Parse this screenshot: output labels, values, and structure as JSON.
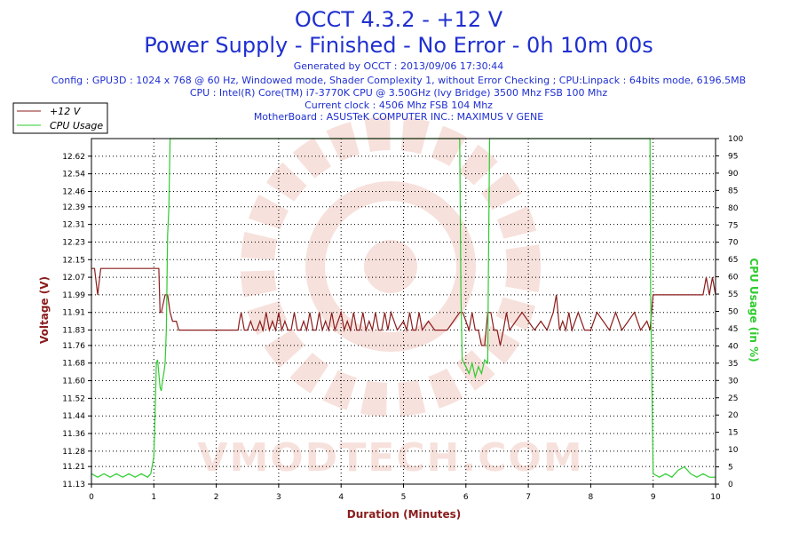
{
  "title": "OCCT 4.3.2 - +12 V",
  "subtitle": "Power Supply - Finished - No Error - 0h 10m 00s",
  "info_lines": [
    "Generated by OCCT : 2013/09/06 17:30:44",
    "Config : GPU3D : 1024 x 768 @ 60 Hz, Windowed mode, Shader Complexity 1, without Error Checking ; CPU:Linpack : 64bits mode, 6196.5MB",
    "CPU : Intel(R) Core(TM) i7-3770K CPU @ 3.50GHz (Ivy Bridge) 3500 Mhz FSB 100 Mhz",
    "Current clock : 4506 Mhz FSB 104 Mhz",
    "MotherBoard : ASUSTeK COMPUTER INC.: MAXIMUS V GENE"
  ],
  "watermark": "VMODTECH.COM",
  "colors": {
    "voltage": "#8b1c1c",
    "cpu": "#2ecc2e",
    "title": "#1f2fd0",
    "watermark": "#f2c9c0"
  },
  "chart_data": {
    "type": "line",
    "title": "OCCT 4.3.2 - +12 V",
    "subtitle": "Power Supply - Finished - No Error - 0h 10m 00s",
    "xlabel": "Duration (Minutes)",
    "ylabel": "Voltage (V)",
    "y2label": "CPU Usage (in %)",
    "xlim": [
      0,
      10
    ],
    "ylim": [
      11.13,
      12.7
    ],
    "y2lim": [
      0,
      100
    ],
    "x_ticks": [
      "0",
      "1",
      "2",
      "3",
      "4",
      "5",
      "6",
      "7",
      "8",
      "9",
      "10"
    ],
    "y_ticks": [
      "11.13",
      "11.21",
      "11.28",
      "11.36",
      "11.44",
      "11.52",
      "11.60",
      "11.68",
      "11.76",
      "11.83",
      "11.91",
      "11.99",
      "12.07",
      "12.15",
      "12.23",
      "12.31",
      "12.39",
      "12.46",
      "12.54",
      "12.62"
    ],
    "y2_ticks": [
      "0",
      "5",
      "10",
      "15",
      "20",
      "25",
      "30",
      "35",
      "40",
      "45",
      "50",
      "55",
      "60",
      "65",
      "70",
      "75",
      "80",
      "85",
      "90",
      "95",
      "100"
    ],
    "grid": true,
    "legend_position": "top-left",
    "series": [
      {
        "name": "+12 V",
        "axis": "left",
        "x": [
          0,
          0.05,
          0.1,
          0.15,
          0.2,
          0.22,
          0.24,
          0.3,
          1.0,
          1.08,
          1.1,
          1.12,
          1.18,
          1.22,
          1.26,
          1.3,
          1.36,
          1.4,
          1.45,
          1.5,
          2.0,
          2.35,
          2.37,
          2.4,
          2.45,
          2.5,
          2.55,
          2.6,
          2.65,
          2.7,
          2.75,
          2.8,
          2.85,
          2.9,
          2.95,
          3.0,
          3.05,
          3.1,
          3.15,
          3.2,
          3.25,
          3.3,
          3.35,
          3.4,
          3.45,
          3.5,
          3.55,
          3.6,
          3.65,
          3.7,
          3.75,
          3.8,
          3.85,
          3.9,
          4.0,
          4.05,
          4.1,
          4.15,
          4.2,
          4.25,
          4.3,
          4.35,
          4.4,
          4.45,
          4.5,
          4.55,
          4.6,
          4.65,
          4.7,
          4.75,
          4.8,
          4.9,
          5.0,
          5.05,
          5.1,
          5.15,
          5.2,
          5.25,
          5.3,
          5.4,
          5.5,
          5.6,
          5.7,
          5.8,
          5.9,
          5.95,
          6.0,
          6.05,
          6.1,
          6.15,
          6.2,
          6.25,
          6.3,
          6.35,
          6.4,
          6.45,
          6.5,
          6.55,
          6.6,
          6.65,
          6.7,
          6.8,
          6.9,
          7.0,
          7.1,
          7.2,
          7.3,
          7.4,
          7.45,
          7.5,
          7.55,
          7.6,
          7.65,
          7.7,
          7.8,
          7.9,
          8.0,
          8.1,
          8.2,
          8.3,
          8.4,
          8.5,
          8.6,
          8.7,
          8.8,
          8.9,
          8.95,
          9.0,
          9.5,
          9.8,
          9.85,
          9.9,
          9.95,
          10.0
        ],
        "values": [
          12.11,
          12.11,
          11.99,
          12.11,
          12.11,
          12.11,
          12.11,
          12.11,
          12.11,
          12.11,
          11.91,
          11.91,
          11.99,
          11.99,
          11.91,
          11.87,
          11.87,
          11.83,
          11.83,
          11.83,
          11.83,
          11.83,
          11.87,
          11.91,
          11.83,
          11.83,
          11.87,
          11.83,
          11.83,
          11.87,
          11.83,
          11.91,
          11.83,
          11.87,
          11.83,
          11.91,
          11.83,
          11.87,
          11.83,
          11.83,
          11.91,
          11.83,
          11.83,
          11.87,
          11.83,
          11.91,
          11.83,
          11.83,
          11.91,
          11.83,
          11.87,
          11.83,
          11.91,
          11.83,
          11.91,
          11.83,
          11.87,
          11.83,
          11.91,
          11.83,
          11.83,
          11.91,
          11.83,
          11.87,
          11.83,
          11.91,
          11.83,
          11.83,
          11.91,
          11.83,
          11.91,
          11.83,
          11.87,
          11.83,
          11.91,
          11.83,
          11.83,
          11.91,
          11.83,
          11.87,
          11.83,
          11.83,
          11.83,
          11.87,
          11.91,
          11.91,
          11.87,
          11.83,
          11.91,
          11.83,
          11.83,
          11.76,
          11.76,
          11.91,
          11.91,
          11.83,
          11.83,
          11.76,
          11.83,
          11.91,
          11.83,
          11.87,
          11.91,
          11.87,
          11.83,
          11.87,
          11.83,
          11.91,
          11.99,
          11.83,
          11.87,
          11.83,
          11.91,
          11.83,
          11.91,
          11.83,
          11.83,
          11.91,
          11.87,
          11.83,
          11.91,
          11.83,
          11.87,
          11.91,
          11.83,
          11.87,
          11.83,
          11.99,
          11.99,
          11.99,
          12.07,
          11.99,
          12.07,
          11.99
        ]
      },
      {
        "name": "CPU Usage",
        "axis": "right",
        "x": [
          0,
          0.1,
          0.2,
          0.3,
          0.4,
          0.5,
          0.6,
          0.7,
          0.8,
          0.9,
          0.95,
          1.0,
          1.02,
          1.04,
          1.06,
          1.08,
          1.1,
          1.12,
          1.14,
          1.16,
          1.18,
          1.2,
          1.22,
          1.24,
          1.26,
          1.28,
          1.3,
          2.0,
          3.0,
          4.0,
          5.0,
          5.9,
          5.92,
          5.94,
          6.0,
          6.05,
          6.1,
          6.15,
          6.2,
          6.25,
          6.3,
          6.35,
          6.36,
          6.38,
          7.0,
          8.0,
          8.95,
          8.96,
          9.0,
          9.1,
          9.2,
          9.3,
          9.4,
          9.5,
          9.6,
          9.7,
          9.8,
          9.9,
          10.0
        ],
        "values": [
          3,
          2,
          3,
          2,
          3,
          2,
          3,
          2,
          3,
          2,
          3,
          8,
          20,
          35,
          36,
          32,
          28,
          27,
          30,
          32,
          35,
          45,
          72,
          80,
          100,
          100,
          100,
          100,
          100,
          100,
          100,
          100,
          55,
          36,
          34,
          32,
          35,
          31,
          34,
          32,
          36,
          35,
          60,
          100,
          100,
          100,
          100,
          55,
          3,
          2,
          3,
          2,
          4,
          5,
          3,
          2,
          3,
          2,
          2
        ]
      }
    ]
  }
}
